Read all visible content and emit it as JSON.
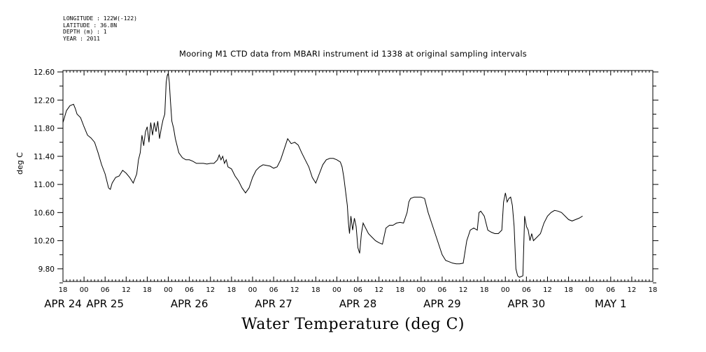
{
  "header": {
    "longitude": "LONGITUDE : 122W(-122)",
    "latitude": "LATITUDE : 36.8N",
    "depth": "DEPTH (m) : 1",
    "year": "YEAR : 2011"
  },
  "chart_data": {
    "type": "line",
    "title": "Mooring M1 CTD data from MBARI instrument id 1338 at original sampling intervals",
    "ylabel": "deg C",
    "bottom_title": "Water Temperature (deg C)",
    "ylim": [
      9.62,
      12.62
    ],
    "xlim_hours": [
      0,
      168
    ],
    "y_ticks": [
      "12.60",
      "12.20",
      "11.80",
      "11.40",
      "11.00",
      "10.60",
      "10.20",
      "9.80"
    ],
    "y_tick_values": [
      12.6,
      12.2,
      11.8,
      11.4,
      11.0,
      10.6,
      10.2,
      9.8
    ],
    "hour_ticks": [
      "18",
      "00",
      "06",
      "12",
      "18",
      "00",
      "06",
      "12",
      "18",
      "00",
      "06",
      "12",
      "18",
      "00",
      "06",
      "12",
      "18",
      "00",
      "06",
      "12",
      "18",
      "00",
      "06",
      "12",
      "18",
      "00",
      "06",
      "12",
      "18"
    ],
    "day_labels": [
      {
        "label": "APR 24",
        "hour": 0
      },
      {
        "label": "APR 25",
        "hour": 12
      },
      {
        "label": "APR 26",
        "hour": 36
      },
      {
        "label": "APR 27",
        "hour": 60
      },
      {
        "label": "APR 28",
        "hour": 84
      },
      {
        "label": "APR 29",
        "hour": 108
      },
      {
        "label": "APR 30",
        "hour": 132
      },
      {
        "label": "MAY  1",
        "hour": 156
      }
    ],
    "series": [
      {
        "color": "#000000",
        "points": [
          [
            0,
            11.88
          ],
          [
            1,
            12.05
          ],
          [
            2,
            12.12
          ],
          [
            3,
            12.14
          ],
          [
            3.5,
            12.08
          ],
          [
            4,
            12.0
          ],
          [
            5,
            11.95
          ],
          [
            6,
            11.82
          ],
          [
            7,
            11.7
          ],
          [
            8,
            11.66
          ],
          [
            9,
            11.6
          ],
          [
            10,
            11.45
          ],
          [
            11,
            11.28
          ],
          [
            12,
            11.15
          ],
          [
            13,
            10.95
          ],
          [
            13.5,
            10.93
          ],
          [
            14,
            11.02
          ],
          [
            15,
            11.1
          ],
          [
            16,
            11.12
          ],
          [
            17,
            11.2
          ],
          [
            18,
            11.16
          ],
          [
            19,
            11.1
          ],
          [
            20,
            11.02
          ],
          [
            21,
            11.15
          ],
          [
            21.5,
            11.35
          ],
          [
            22,
            11.45
          ],
          [
            22.5,
            11.7
          ],
          [
            23,
            11.55
          ],
          [
            23.5,
            11.75
          ],
          [
            24,
            11.82
          ],
          [
            24.5,
            11.6
          ],
          [
            25,
            11.88
          ],
          [
            25.5,
            11.7
          ],
          [
            26,
            11.88
          ],
          [
            26.5,
            11.75
          ],
          [
            27,
            11.9
          ],
          [
            27.5,
            11.65
          ],
          [
            28,
            11.8
          ],
          [
            28.5,
            11.92
          ],
          [
            29,
            12.0
          ],
          [
            29.4,
            12.45
          ],
          [
            29.7,
            12.55
          ],
          [
            30,
            12.58
          ],
          [
            30.3,
            12.45
          ],
          [
            30.6,
            12.2
          ],
          [
            31,
            11.9
          ],
          [
            31.5,
            11.8
          ],
          [
            32,
            11.65
          ],
          [
            33,
            11.45
          ],
          [
            34,
            11.38
          ],
          [
            35,
            11.35
          ],
          [
            36,
            11.35
          ],
          [
            37,
            11.33
          ],
          [
            38,
            11.3
          ],
          [
            39,
            11.3
          ],
          [
            40,
            11.3
          ],
          [
            41,
            11.29
          ],
          [
            42,
            11.3
          ],
          [
            43,
            11.3
          ],
          [
            44,
            11.35
          ],
          [
            44.5,
            11.42
          ],
          [
            45,
            11.35
          ],
          [
            45.5,
            11.4
          ],
          [
            46,
            11.3
          ],
          [
            46.5,
            11.35
          ],
          [
            47,
            11.25
          ],
          [
            48,
            11.22
          ],
          [
            49,
            11.12
          ],
          [
            50,
            11.05
          ],
          [
            51,
            10.95
          ],
          [
            52,
            10.88
          ],
          [
            53,
            10.95
          ],
          [
            54,
            11.1
          ],
          [
            55,
            11.2
          ],
          [
            56,
            11.25
          ],
          [
            57,
            11.28
          ],
          [
            58,
            11.27
          ],
          [
            59,
            11.26
          ],
          [
            60,
            11.23
          ],
          [
            61,
            11.25
          ],
          [
            62,
            11.35
          ],
          [
            63,
            11.5
          ],
          [
            64,
            11.65
          ],
          [
            65,
            11.58
          ],
          [
            66,
            11.6
          ],
          [
            67,
            11.56
          ],
          [
            68,
            11.45
          ],
          [
            69,
            11.35
          ],
          [
            70,
            11.25
          ],
          [
            71,
            11.1
          ],
          [
            72,
            11.02
          ],
          [
            73,
            11.15
          ],
          [
            74,
            11.28
          ],
          [
            75,
            11.35
          ],
          [
            76,
            11.37
          ],
          [
            77,
            11.37
          ],
          [
            78,
            11.35
          ],
          [
            79,
            11.32
          ],
          [
            79.5,
            11.25
          ],
          [
            80,
            11.1
          ],
          [
            80.5,
            10.9
          ],
          [
            81,
            10.7
          ],
          [
            81.3,
            10.45
          ],
          [
            81.6,
            10.3
          ],
          [
            82,
            10.55
          ],
          [
            82.5,
            10.35
          ],
          [
            83,
            10.52
          ],
          [
            83.5,
            10.4
          ],
          [
            84,
            10.1
          ],
          [
            84.5,
            10.02
          ],
          [
            85,
            10.3
          ],
          [
            85.5,
            10.45
          ],
          [
            86,
            10.4
          ],
          [
            87,
            10.3
          ],
          [
            88,
            10.25
          ],
          [
            89,
            10.2
          ],
          [
            90,
            10.17
          ],
          [
            91,
            10.15
          ],
          [
            92,
            10.38
          ],
          [
            93,
            10.42
          ],
          [
            94,
            10.42
          ],
          [
            95,
            10.45
          ],
          [
            96,
            10.46
          ],
          [
            97,
            10.45
          ],
          [
            98,
            10.6
          ],
          [
            98.5,
            10.75
          ],
          [
            99,
            10.8
          ],
          [
            100,
            10.82
          ],
          [
            101,
            10.82
          ],
          [
            102,
            10.82
          ],
          [
            103,
            10.8
          ],
          [
            104,
            10.6
          ],
          [
            105,
            10.45
          ],
          [
            106,
            10.3
          ],
          [
            107,
            10.15
          ],
          [
            108,
            10.0
          ],
          [
            109,
            9.92
          ],
          [
            110,
            9.9
          ],
          [
            111,
            9.88
          ],
          [
            112,
            9.87
          ],
          [
            113,
            9.87
          ],
          [
            114,
            9.88
          ],
          [
            115,
            10.2
          ],
          [
            116,
            10.35
          ],
          [
            117,
            10.38
          ],
          [
            118,
            10.35
          ],
          [
            118.5,
            10.6
          ],
          [
            119,
            10.62
          ],
          [
            120,
            10.55
          ],
          [
            121,
            10.35
          ],
          [
            122,
            10.32
          ],
          [
            123,
            10.3
          ],
          [
            124,
            10.3
          ],
          [
            125,
            10.35
          ],
          [
            125.5,
            10.75
          ],
          [
            126,
            10.88
          ],
          [
            126.5,
            10.75
          ],
          [
            127,
            10.8
          ],
          [
            127.5,
            10.82
          ],
          [
            128,
            10.7
          ],
          [
            128.5,
            10.4
          ],
          [
            129,
            9.8
          ],
          [
            129.5,
            9.7
          ],
          [
            130,
            9.68
          ],
          [
            131,
            9.7
          ],
          [
            131.5,
            10.55
          ],
          [
            132,
            10.4
          ],
          [
            132.5,
            10.35
          ],
          [
            133,
            10.2
          ],
          [
            133.5,
            10.3
          ],
          [
            134,
            10.2
          ],
          [
            135,
            10.25
          ],
          [
            136,
            10.3
          ],
          [
            137,
            10.45
          ],
          [
            138,
            10.55
          ],
          [
            139,
            10.6
          ],
          [
            140,
            10.63
          ],
          [
            141,
            10.62
          ],
          [
            142,
            10.6
          ],
          [
            143,
            10.55
          ],
          [
            144,
            10.5
          ],
          [
            145,
            10.48
          ],
          [
            146,
            10.5
          ],
          [
            147,
            10.52
          ],
          [
            148,
            10.55
          ]
        ]
      }
    ]
  }
}
